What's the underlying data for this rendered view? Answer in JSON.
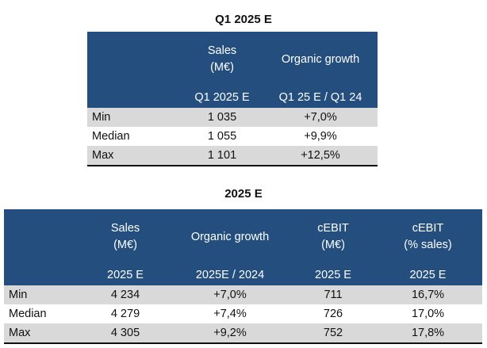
{
  "table1": {
    "title": "Q1 2025 E",
    "header_top": [
      "",
      "Sales\n(M€)",
      "Organic growth"
    ],
    "header_bottom": [
      "",
      "Q1 2025 E",
      "Q1 25 E / Q1 24"
    ],
    "rows": [
      {
        "label": "Min",
        "values": [
          "1 035",
          "+7,0%"
        ]
      },
      {
        "label": "Median",
        "values": [
          "1 055",
          "+9,9%"
        ]
      },
      {
        "label": "Max",
        "values": [
          "1 101",
          "+12,5%"
        ]
      }
    ]
  },
  "table2": {
    "title": "2025 E",
    "header_top": [
      "",
      "Sales\n(M€)",
      "Organic growth",
      "cEBIT\n(M€)",
      "cEBIT\n(% sales)"
    ],
    "header_bottom": [
      "",
      "2025 E",
      "2025E / 2024",
      "2025 E",
      "2025 E"
    ],
    "rows": [
      {
        "label": "Min",
        "values": [
          "4 234",
          "+7,0%",
          "711",
          "16,7%"
        ]
      },
      {
        "label": "Median",
        "values": [
          "4 279",
          "+7,4%",
          "726",
          "17,0%"
        ]
      },
      {
        "label": "Max",
        "values": [
          "4 305",
          "+9,2%",
          "752",
          "17,8%"
        ]
      }
    ]
  },
  "colors": {
    "header_bg": "#244e7d",
    "header_text": "#ffffff",
    "shade": "#d9d9d9"
  }
}
